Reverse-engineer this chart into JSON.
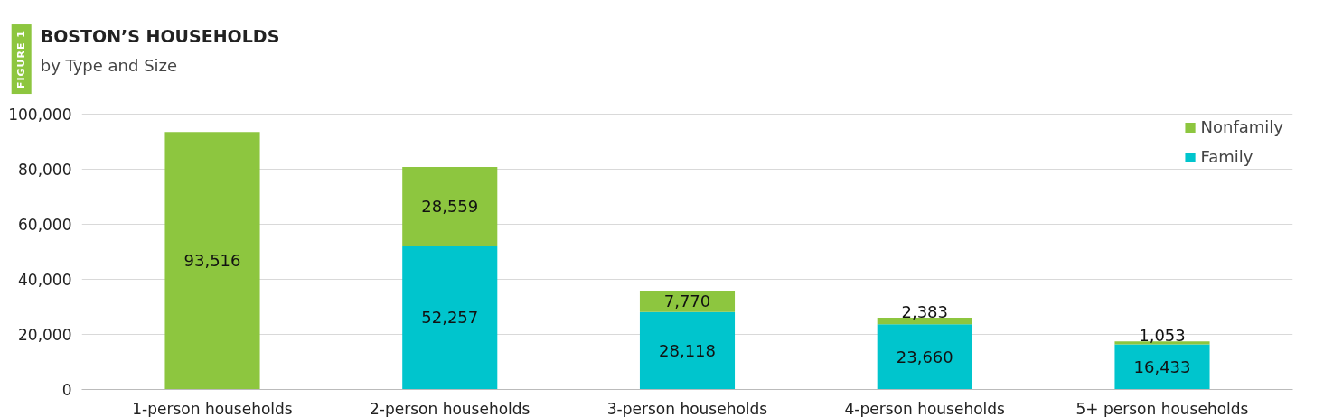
{
  "chart_data": {
    "type": "bar",
    "title": "BOSTON’S HOUSEHOLDS",
    "subtitle": "by Type and Size",
    "annotations": [
      "FIGURE 1"
    ],
    "categories": [
      "1-person households",
      "2-person households",
      "3-person households",
      "4-person households",
      "5+ person households"
    ],
    "stacked": true,
    "series": [
      {
        "name": "Family",
        "color": "#00c5cd",
        "values": [
          null,
          52257,
          28118,
          23660,
          16433
        ],
        "value_labels": [
          null,
          "52,257",
          "28,118",
          "23,660",
          "16,433"
        ]
      },
      {
        "name": "Nonfamily",
        "color": "#8dc63f",
        "values": [
          93516,
          28559,
          7770,
          2383,
          1053
        ],
        "value_labels": [
          "93,516",
          "28,559",
          "7,770",
          "2,383",
          "1,053"
        ]
      }
    ],
    "ylim": [
      0,
      100000
    ],
    "yticks": [
      {
        "value": 0,
        "label": "0"
      },
      {
        "value": 20000,
        "label": "20,000"
      },
      {
        "value": 40000,
        "label": "40,000"
      },
      {
        "value": 60000,
        "label": "60,000"
      },
      {
        "value": 80000,
        "label": "80,000"
      },
      {
        "value": 100000,
        "label": "100,000"
      }
    ],
    "grid": "y",
    "legend": "top right"
  }
}
